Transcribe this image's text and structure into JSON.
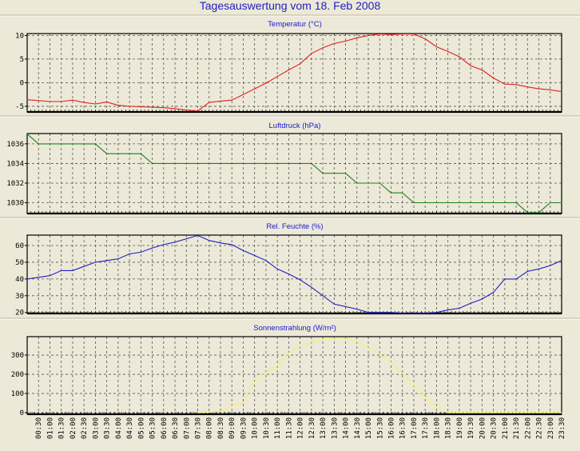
{
  "title": "Tagesauswertung vom 18. Feb 2008",
  "chart_data": [
    {
      "type": "line",
      "title": "Temperatur (°C)",
      "color": "#e02020",
      "ylim": [
        -6.2,
        10.4
      ],
      "yticks": [
        -5,
        0,
        5,
        10
      ],
      "ytick_labels": [
        "-5",
        "0",
        "5",
        "10"
      ],
      "values": [
        -3.6,
        -3.8,
        -4.0,
        -4.0,
        -3.7,
        -4.2,
        -4.5,
        -4.1,
        -4.8,
        -5.0,
        -5.1,
        -5.2,
        -5.3,
        -5.5,
        -5.8,
        -6.0,
        -4.2,
        -3.9,
        -3.7,
        -2.5,
        -1.3,
        -0.1,
        1.3,
        2.7,
        4.0,
        6.2,
        7.4,
        8.3,
        8.8,
        9.5,
        10.0,
        10.3,
        10.2,
        10.3,
        10.3,
        9.3,
        7.6,
        6.6,
        5.5,
        3.6,
        2.7,
        1.0,
        -0.3,
        -0.4,
        -0.9,
        -1.3,
        -1.5,
        -1.9
      ]
    },
    {
      "type": "line",
      "title": "Luftdruck (hPa)",
      "color": "#208020",
      "ylim": [
        1028.9,
        1037.05
      ],
      "yticks": [
        1030,
        1032,
        1034,
        1036
      ],
      "ytick_labels": [
        "1030",
        "1032",
        "1034",
        "1036"
      ],
      "values": [
        1037,
        1036,
        1036,
        1036,
        1036,
        1036,
        1036,
        1035,
        1035,
        1035,
        1035,
        1034,
        1034,
        1034,
        1034,
        1034,
        1034,
        1034,
        1034,
        1034,
        1034,
        1034,
        1034,
        1034,
        1034,
        1034,
        1033,
        1033,
        1033,
        1032,
        1032,
        1032,
        1031,
        1031,
        1030,
        1030,
        1030,
        1030,
        1030,
        1030,
        1030,
        1030,
        1030,
        1030,
        1029,
        1029,
        1030,
        1030
      ]
    },
    {
      "type": "line",
      "title": "Rel. Feuchte (%)",
      "color": "#2020c0",
      "ylim": [
        19.4,
        66.2
      ],
      "yticks": [
        20,
        30,
        40,
        50,
        60
      ],
      "ytick_labels": [
        "20",
        "30",
        "40",
        "50",
        "60"
      ],
      "values": [
        40,
        41,
        42,
        45,
        45,
        47.5,
        50,
        51,
        52,
        55,
        56,
        58.5,
        60.5,
        62,
        64,
        66,
        63,
        61.5,
        60.5,
        57,
        54,
        51,
        46,
        43,
        39.5,
        35,
        30,
        25,
        23.5,
        22,
        20,
        20,
        20,
        19.5,
        19.5,
        19.5,
        20,
        21.5,
        22.5,
        25.5,
        28,
        32,
        40,
        40,
        44.5,
        46,
        48,
        51
      ]
    },
    {
      "type": "line",
      "title": "Sonnenstrahlung (W/m²)",
      "color": "#f4f070",
      "ylim": [
        -8,
        396
      ],
      "yticks": [
        0,
        100,
        200,
        300
      ],
      "ytick_labels": [
        "0",
        "100",
        "200",
        "300"
      ],
      "values": [
        null,
        null,
        null,
        null,
        null,
        null,
        null,
        null,
        null,
        null,
        null,
        null,
        null,
        null,
        null,
        0,
        3,
        8,
        35,
        50,
        160,
        210,
        245,
        310,
        345,
        365,
        383,
        388,
        388,
        370,
        337,
        305,
        262,
        205,
        142,
        80,
        25,
        0,
        0,
        0,
        0,
        0,
        0,
        0,
        0,
        0,
        0,
        0
      ]
    }
  ],
  "x_tick_labels": [
    "00:30",
    "01:00",
    "01:30",
    "02:00",
    "02:30",
    "03:00",
    "03:30",
    "04:00",
    "04:30",
    "05:00",
    "05:30",
    "06:00",
    "06:30",
    "07:00",
    "07:30",
    "08:00",
    "08:30",
    "09:00",
    "09:30",
    "10:00",
    "10:30",
    "11:00",
    "11:30",
    "12:00",
    "12:30",
    "13:00",
    "13:30",
    "14:00",
    "14:30",
    "15:00",
    "15:30",
    "16:00",
    "16:30",
    "17:00",
    "17:30",
    "18:00",
    "18:30",
    "19:00",
    "19:30",
    "20:00",
    "20:30",
    "21:00",
    "21:30",
    "22:00",
    "22:30",
    "23:00",
    "23:30"
  ]
}
